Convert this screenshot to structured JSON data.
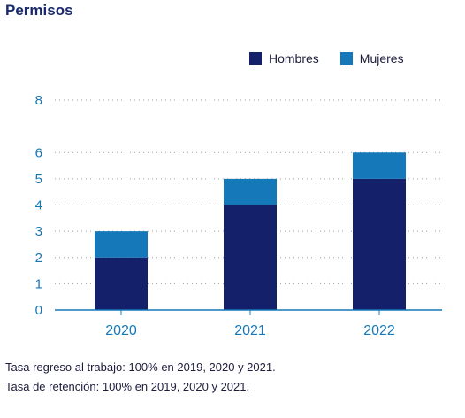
{
  "title": "Permisos",
  "colors": {
    "hombres": "#14206a",
    "mujeres": "#1578b9",
    "axis": "#1578b9",
    "grid": "#9aa0a8"
  },
  "legend": [
    {
      "label": "Hombres",
      "color": "#14206a"
    },
    {
      "label": "Mujeres",
      "color": "#1578b9"
    }
  ],
  "chart_data": {
    "type": "bar",
    "stacked": true,
    "categories": [
      "2020",
      "2021",
      "2022"
    ],
    "series": [
      {
        "name": "Hombres",
        "values": [
          2,
          4,
          5
        ]
      },
      {
        "name": "Mujeres",
        "values": [
          1,
          1,
          1
        ]
      }
    ],
    "ylim": [
      0,
      8
    ],
    "yticks": [
      0,
      1,
      2,
      3,
      4,
      5,
      6,
      8
    ],
    "grid": true,
    "legend_position": "top-right",
    "xlabel": "",
    "ylabel": ""
  },
  "notes": [
    "Tasa regreso al trabajo: 100% en 2019, 2020 y 2021.",
    "Tasa de retención: 100% en 2019, 2020 y 2021."
  ]
}
